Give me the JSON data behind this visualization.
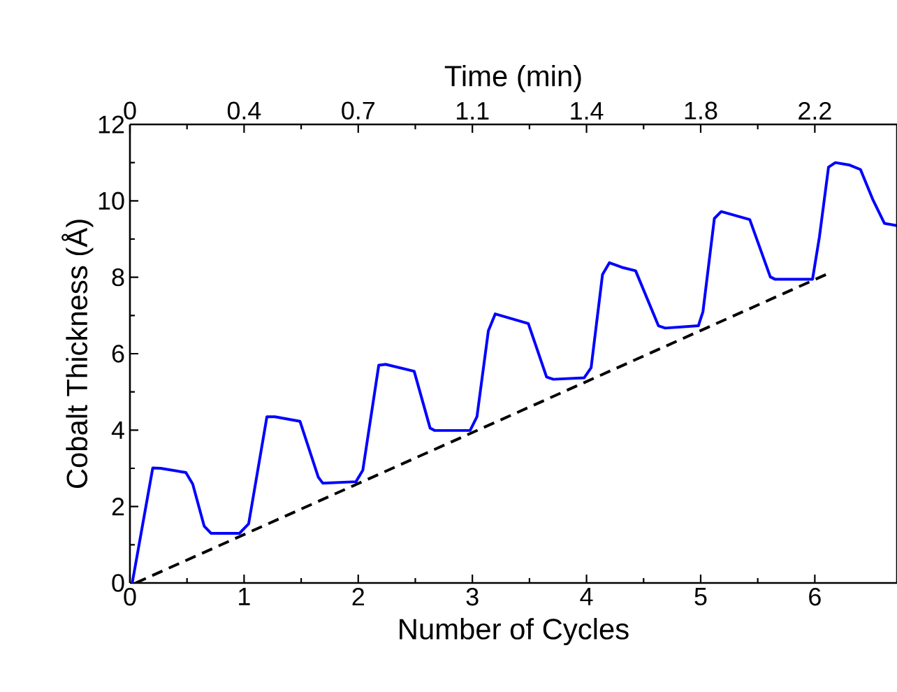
{
  "chart_data": {
    "type": "line",
    "xlabel": "Number of Cycles",
    "ylabel": "Cobalt Thickness (Å)",
    "x2label": "Time (min)",
    "xlim": [
      0,
      6.72
    ],
    "xticks": [
      0,
      1,
      2,
      3,
      4,
      5,
      6
    ],
    "ylim": [
      0,
      12
    ],
    "yticks": [
      0,
      2,
      4,
      6,
      8,
      10,
      12
    ],
    "x2lim": [
      0,
      2.4192
    ],
    "x2ticks": [
      0,
      {
        "value": 0.36,
        "label": "0.4"
      },
      {
        "value": 0.72,
        "label": "0.7"
      },
      {
        "value": 1.08,
        "label": "1.1"
      },
      {
        "value": 1.44,
        "label": "1.4"
      },
      1.8,
      {
        "value": 2.16,
        "label": "2.2"
      }
    ],
    "grid": false,
    "marker": "none",
    "series": [
      {
        "color": "#0000ff",
        "line_style": "solid",
        "x": [
          0.02,
          0.2,
          0.27,
          0.49,
          0.55,
          0.65,
          0.71,
          0.96,
          1.04,
          1.2,
          1.27,
          1.49,
          1.65,
          1.69,
          1.98,
          2.04,
          2.18,
          2.24,
          2.49,
          2.63,
          2.67,
          2.98,
          3.04,
          3.14,
          3.2,
          3.49,
          3.65,
          3.71,
          3.98,
          4.04,
          4.14,
          4.2,
          4.31,
          4.43,
          4.63,
          4.69,
          4.98,
          5.02,
          5.12,
          5.18,
          5.43,
          5.61,
          5.65,
          5.98,
          6.04,
          6.12,
          6.18,
          6.3,
          6.4,
          6.51,
          6.61,
          6.72
        ],
        "values": [
          0,
          3.01,
          3.0,
          2.89,
          2.59,
          1.49,
          1.3,
          1.3,
          1.55,
          4.35,
          4.35,
          4.23,
          2.77,
          2.61,
          2.65,
          2.95,
          5.7,
          5.72,
          5.54,
          4.05,
          3.99,
          3.99,
          4.35,
          6.6,
          7.04,
          6.79,
          5.39,
          5.33,
          5.37,
          5.63,
          8.07,
          8.38,
          8.26,
          8.17,
          6.73,
          6.67,
          6.73,
          7.1,
          9.54,
          9.72,
          9.51,
          8.01,
          7.95,
          7.95,
          9.05,
          10.88,
          11.0,
          10.94,
          10.82,
          10.02,
          9.41,
          9.35
        ]
      },
      {
        "color": "#000000",
        "line_style": "dashed",
        "x": [
          0.05,
          6.12
        ],
        "values": [
          0,
          8.1
        ]
      }
    ]
  }
}
